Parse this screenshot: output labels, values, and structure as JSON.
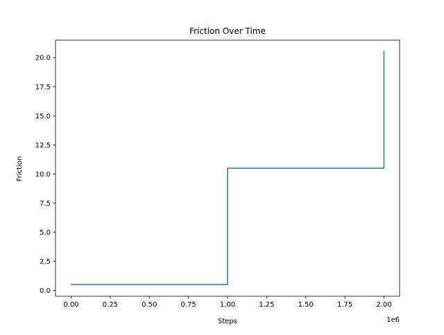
{
  "chart_data": {
    "type": "line",
    "title": "Friction Over Time",
    "xlabel": "Steps",
    "ylabel": "Friction",
    "x_offset_label": "1e6",
    "xlim": [
      -0.1,
      2.1
    ],
    "ylim": [
      -0.5,
      21.5
    ],
    "xticks": [
      {
        "value": 0.0,
        "label": "0.00"
      },
      {
        "value": 0.25,
        "label": "0.25"
      },
      {
        "value": 0.5,
        "label": "0.50"
      },
      {
        "value": 0.75,
        "label": "0.75"
      },
      {
        "value": 1.0,
        "label": "1.00"
      },
      {
        "value": 1.25,
        "label": "1.25"
      },
      {
        "value": 1.5,
        "label": "1.50"
      },
      {
        "value": 1.75,
        "label": "1.75"
      },
      {
        "value": 2.0,
        "label": "2.00"
      }
    ],
    "yticks": [
      {
        "value": 0.0,
        "label": "0.0"
      },
      {
        "value": 2.5,
        "label": "2.5"
      },
      {
        "value": 5.0,
        "label": "5.0"
      },
      {
        "value": 7.5,
        "label": "7.5"
      },
      {
        "value": 10.0,
        "label": "10.0"
      },
      {
        "value": 12.5,
        "label": "12.5"
      },
      {
        "value": 15.0,
        "label": "15.0"
      },
      {
        "value": 17.5,
        "label": "17.5"
      },
      {
        "value": 20.0,
        "label": "20.0"
      }
    ],
    "grid": false,
    "line_color": "#1f77b4",
    "series": [
      {
        "x": [
          0.0,
          1.0,
          1.0,
          2.0,
          2.0
        ],
        "y": [
          0.5,
          0.5,
          10.5,
          10.5,
          20.5
        ]
      }
    ]
  }
}
